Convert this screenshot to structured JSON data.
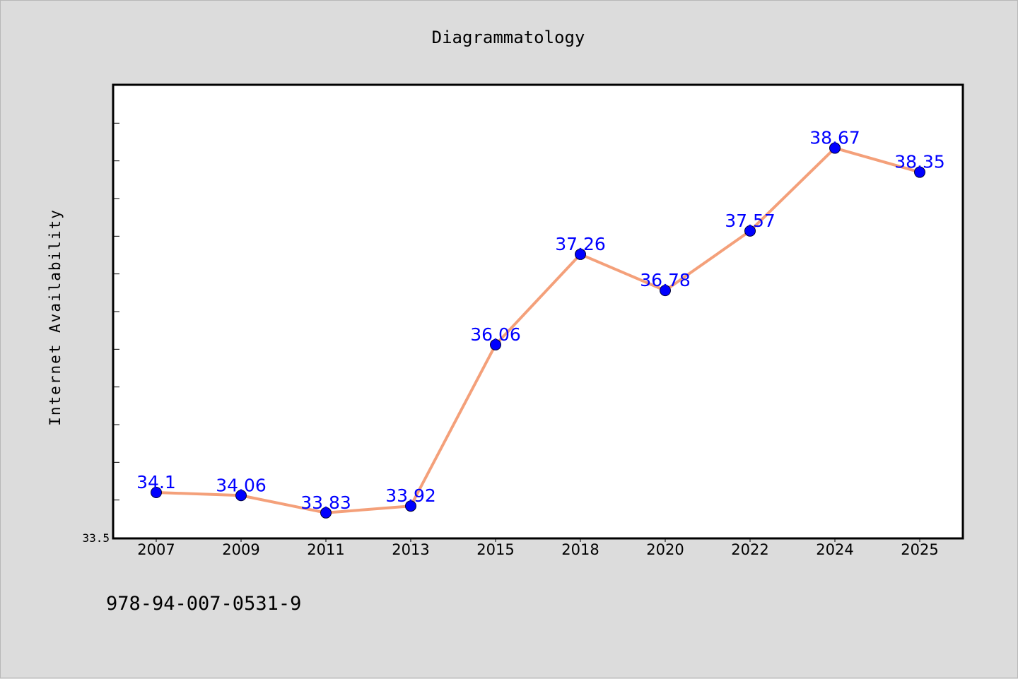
{
  "colors": {
    "background": "#dcdcdc",
    "plot_background": "#ffffff",
    "line": "#f4a07a",
    "marker": "#0000ff",
    "data_label": "#0000ff"
  },
  "footnote": "978-94-007-0531-9",
  "chart_data": {
    "type": "line",
    "title": "Diagrammatology",
    "xlabel": "",
    "ylabel": "Internet Availability",
    "categories": [
      "2007",
      "2009",
      "2011",
      "2013",
      "2015",
      "2018",
      "2020",
      "2022",
      "2024",
      "2025"
    ],
    "series": [
      {
        "values": [
          34.1,
          34.06,
          33.83,
          33.92,
          36.06,
          37.26,
          36.78,
          37.57,
          38.67,
          38.35
        ],
        "labels": [
          "34.1",
          "34.06",
          "33.83",
          "33.92",
          "36.06",
          "37.26",
          "36.78",
          "37.57",
          "38.67",
          "38.35"
        ]
      }
    ],
    "ylim": [
      33.5,
      39.5
    ],
    "yticks_labeled": [
      "33.5"
    ],
    "minor_tick_step": 0.5,
    "grid": false,
    "legend": "none",
    "markers": "filled circles",
    "data_labels": true
  }
}
